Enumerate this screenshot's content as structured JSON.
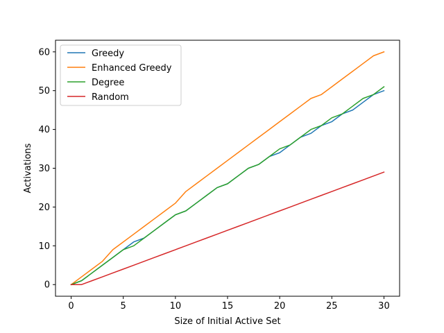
{
  "chart_data": {
    "type": "line",
    "title": "",
    "xlabel": "Size of Initial Active Set",
    "ylabel": "Activations",
    "xlim": [
      -1.5,
      31.5
    ],
    "ylim": [
      -3,
      63
    ],
    "xticks": [
      0,
      5,
      10,
      15,
      20,
      25,
      30
    ],
    "yticks": [
      0,
      10,
      20,
      30,
      40,
      50,
      60
    ],
    "grid": false,
    "legend_position": "top-left",
    "x": [
      0,
      1,
      2,
      3,
      4,
      5,
      6,
      7,
      8,
      9,
      10,
      11,
      12,
      13,
      14,
      15,
      16,
      17,
      18,
      19,
      20,
      21,
      22,
      23,
      24,
      25,
      26,
      27,
      28,
      29,
      30
    ],
    "series": [
      {
        "name": "Greedy",
        "color": "#1f77b4",
        "values": [
          0,
          1,
          3,
          5,
          7,
          9,
          11,
          12,
          14,
          16,
          18,
          19,
          21,
          23,
          25,
          26,
          28,
          30,
          31,
          33,
          34,
          36,
          38,
          39,
          41,
          42,
          44,
          45,
          47,
          49,
          50
        ]
      },
      {
        "name": "Enhanced Greedy",
        "color": "#ff7f0e",
        "values": [
          0,
          2,
          4,
          6,
          9,
          11,
          13,
          15,
          17,
          19,
          21,
          24,
          26,
          28,
          30,
          32,
          34,
          36,
          38,
          40,
          42,
          44,
          46,
          48,
          49,
          51,
          53,
          55,
          57,
          59,
          60
        ]
      },
      {
        "name": "Degree",
        "color": "#2ca02c",
        "values": [
          0,
          1,
          3,
          5,
          7,
          9,
          10,
          12,
          14,
          16,
          18,
          19,
          21,
          23,
          25,
          26,
          28,
          30,
          31,
          33,
          35,
          36,
          38,
          40,
          41,
          43,
          44,
          46,
          48,
          49,
          51
        ]
      },
      {
        "name": "Random",
        "color": "#d62728",
        "values": [
          0,
          0,
          1,
          2,
          3,
          4,
          5,
          6,
          7,
          8,
          9,
          10,
          11,
          12,
          13,
          14,
          15,
          16,
          17,
          18,
          19,
          20,
          21,
          22,
          23,
          24,
          25,
          26,
          27,
          28,
          29
        ]
      }
    ]
  }
}
